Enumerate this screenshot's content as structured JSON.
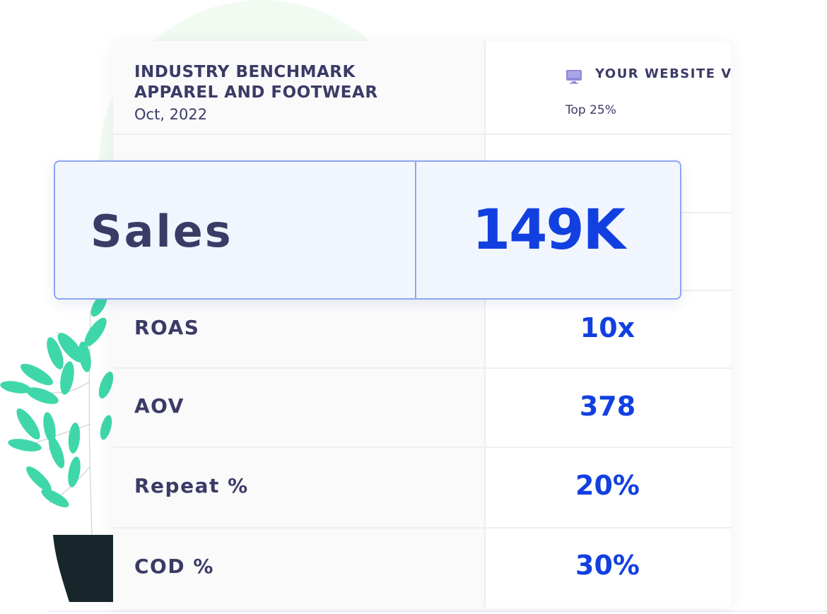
{
  "header": {
    "title_line1": "INDUSTRY BENCHMARK",
    "title_line2": "APPAREL AND FOOTWEAR",
    "date": "Oct, 2022",
    "compare_label": "YOUR WEBSITE VS",
    "percentile_label": "Top 25%",
    "compare_icon": "monitor-icon"
  },
  "highlight": {
    "metric": "Sales",
    "value": "149K"
  },
  "rows": [
    {
      "metric": "ROAS",
      "value": "10x"
    },
    {
      "metric": "AOV",
      "value": "378"
    },
    {
      "metric": "Repeat %",
      "value": "20%"
    },
    {
      "metric": "COD %",
      "value": "30%"
    }
  ],
  "colors": {
    "text_dark": "#3b3b66",
    "value_blue": "#1240e0",
    "highlight_bg": "#f1f5fe",
    "highlight_border": "#8ba7f2",
    "leaf_green": "#3fd7aa",
    "pot": "#16262b"
  }
}
